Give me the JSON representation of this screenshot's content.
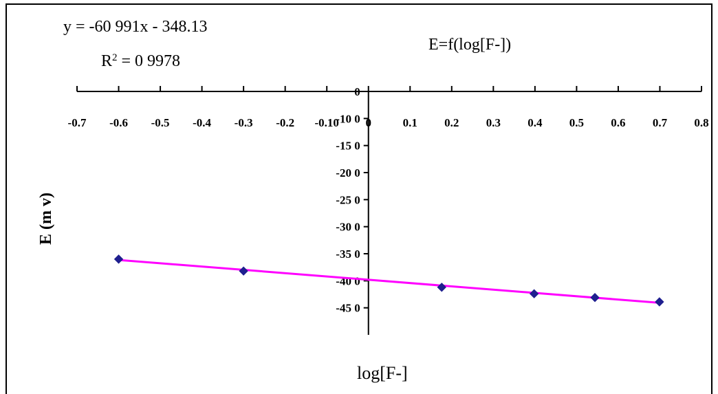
{
  "chart_data": {
    "type": "scatter",
    "title": "E=f(log[F-])",
    "xlabel": "log[F-]",
    "ylabel": "E (m v)",
    "xlim": [
      -0.7,
      0.8
    ],
    "ylim": [
      -450,
      0
    ],
    "x_ticks": [
      "-0.7",
      "-0.6",
      "-0.5",
      "-0.4",
      "-0.3",
      "-0.2",
      "-0.10",
      "0",
      "0.1",
      "0.2",
      "0.3",
      "0.4",
      "0.5",
      "0.6",
      "0.7",
      "0.8"
    ],
    "y_ticks": [
      "0",
      "-10 0",
      "-15 0",
      "-20 0",
      "-25 0",
      "-30 0",
      "-35 0",
      "-40 0",
      "-45 0"
    ],
    "series": [
      {
        "x": [
          -0.6,
          -0.3,
          0.176,
          0.398,
          0.544,
          0.699
        ],
        "y": [
          -310,
          -332,
          -362,
          -374,
          -381,
          -389
        ],
        "color": "#1f1f8f"
      }
    ],
    "trendline": {
      "slope": -60.991,
      "intercept": -348.13,
      "color": "#ff00ff",
      "equation_text": "y = -60 991x - 348.13",
      "r2_label": "R",
      "r2_sup": "2",
      "r2_value": " = 0 9978"
    },
    "grid": false,
    "legend": "none"
  }
}
